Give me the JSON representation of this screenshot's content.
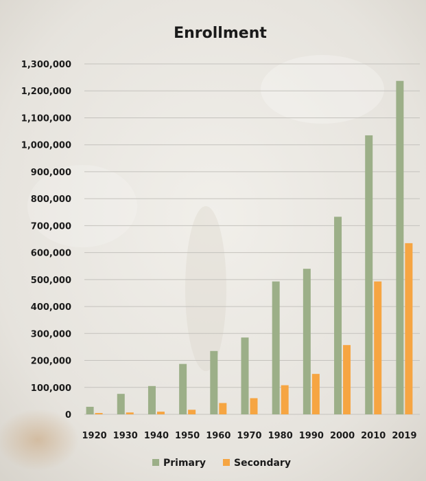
{
  "chart_data": {
    "type": "bar",
    "title": "Enrollment",
    "xlabel": "",
    "ylabel": "",
    "categories": [
      "1920",
      "1930",
      "1940",
      "1950",
      "1960",
      "1970",
      "1980",
      "1990",
      "2000",
      "2010",
      "2019"
    ],
    "series": [
      {
        "name": "Primary",
        "color": "#9caf88",
        "values": [
          28000,
          76000,
          105000,
          187000,
          235000,
          285000,
          493000,
          540000,
          733000,
          1035000,
          1237000
        ]
      },
      {
        "name": "Secondary",
        "color": "#f6a542",
        "values": [
          5000,
          7000,
          10000,
          17000,
          42000,
          60000,
          108000,
          150000,
          257000,
          493000,
          635000
        ]
      }
    ],
    "ylim": [
      0,
      1300000
    ],
    "yticks": [
      0,
      100000,
      200000,
      300000,
      400000,
      500000,
      600000,
      700000,
      800000,
      900000,
      1000000,
      1100000,
      1200000,
      1300000
    ],
    "ytick_labels": [
      "0",
      "100,000",
      "200,000",
      "300,000",
      "400,000",
      "500,000",
      "600,000",
      "700,000",
      "800,000",
      "900,000",
      "1,000,000",
      "1,100,000",
      "1,200,000",
      "1,300,000"
    ],
    "grid": true,
    "legend": "bottom"
  },
  "colors": {
    "gridline": "#c4c2bd",
    "background": "#e9e7e2"
  }
}
